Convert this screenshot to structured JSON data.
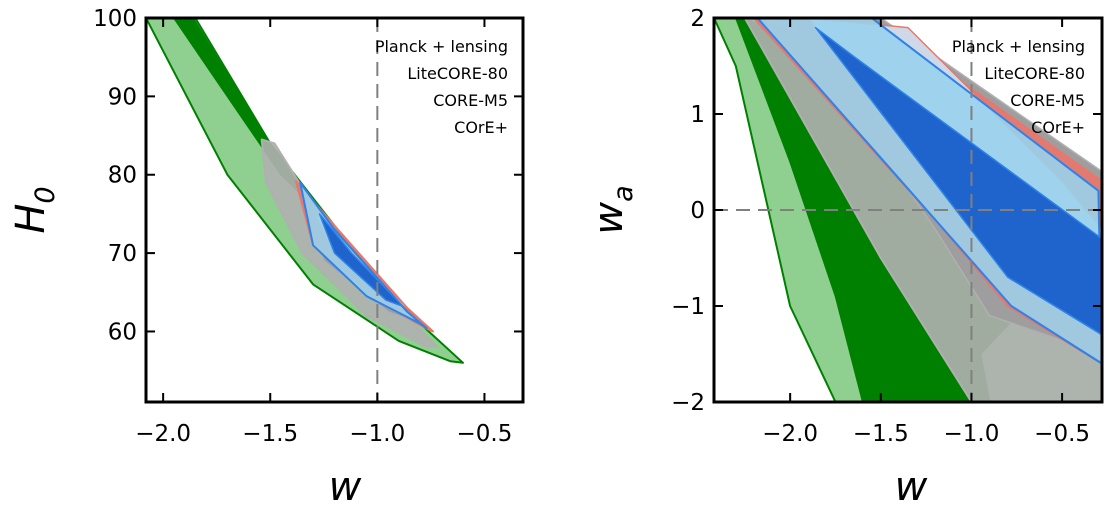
{
  "colors": {
    "planck": "#008000",
    "planck_light": "#8fcf8f",
    "litecore": "#b0b0b0",
    "core_m5": "#e8776d",
    "core_plus": "#2d83e8",
    "core_plus_light": "#99d2ec",
    "core_plus_dark": "#1f64cc",
    "reference_line": "#808080"
  },
  "chart_data": [
    {
      "type": "contour",
      "xlabel": "w",
      "ylabel": "H",
      "ylabel_subscript": "0",
      "xlim": [
        -2.08,
        -0.32
      ],
      "ylim": [
        51,
        100
      ],
      "xticks": [
        -2.0,
        -1.5,
        -1.0,
        -0.5
      ],
      "xtick_labels": [
        "−2.0",
        "−1.5",
        "−1.0",
        "−0.5"
      ],
      "yticks": [
        60,
        70,
        80,
        90,
        100
      ],
      "ytick_labels": [
        "60",
        "70",
        "80",
        "90",
        "100"
      ],
      "reference_lines": [
        {
          "axis": "x",
          "value": -1.0
        }
      ],
      "legend_position": "top-right",
      "legend": [
        {
          "label": "Planck + lensing",
          "color_key": "planck"
        },
        {
          "label": "LiteCORE-80",
          "color_key": "litecore"
        },
        {
          "label": "CORE-M5",
          "color_key": "core_m5"
        },
        {
          "label": "COrE+",
          "color_key": "core_plus"
        }
      ],
      "series": [
        {
          "name": "Planck + lensing",
          "outer": [
            [
              -2.0,
              100
            ],
            [
              -1.85,
              100
            ],
            [
              -1.5,
              84
            ],
            [
              -1.1,
              70
            ],
            [
              -0.8,
              61
            ],
            [
              -0.6,
              56
            ],
            [
              -0.66,
              56.2
            ],
            [
              -0.9,
              58.8
            ],
            [
              -1.3,
              66
            ],
            [
              -1.7,
              80
            ],
            [
              -2.08,
              100
            ]
          ],
          "inner": [
            [
              -1.95,
              100
            ],
            [
              -1.86,
              100
            ],
            [
              -1.55,
              86
            ],
            [
              -1.3,
              76
            ],
            [
              -1.45,
              80
            ],
            [
              -1.7,
              90
            ]
          ]
        },
        {
          "name": "LiteCORE-80",
          "outer": [
            [
              -1.54,
              84.5
            ],
            [
              -1.48,
              84
            ],
            [
              -1.25,
              74
            ],
            [
              -0.9,
              63
            ],
            [
              -0.72,
              58
            ],
            [
              -0.78,
              58.2
            ],
            [
              -1.05,
              62
            ],
            [
              -1.35,
              70
            ],
            [
              -1.52,
              79
            ]
          ],
          "inner": [
            [
              -1.38,
              79
            ],
            [
              -1.2,
              73
            ],
            [
              -0.85,
              61.5
            ],
            [
              -0.95,
              62.5
            ],
            [
              -1.25,
              69
            ]
          ]
        },
        {
          "name": "CORE-M5",
          "outer": [
            [
              -1.38,
              79.2
            ],
            [
              -1.2,
              73.5
            ],
            [
              -0.86,
              63
            ],
            [
              -0.74,
              60
            ],
            [
              -0.78,
              60.5
            ],
            [
              -1.0,
              64
            ],
            [
              -1.3,
              71
            ]
          ],
          "inner": [
            [
              -1.3,
              75.5
            ],
            [
              -1.15,
              71
            ],
            [
              -0.86,
              63
            ],
            [
              -0.92,
              63.5
            ],
            [
              -1.2,
              70
            ]
          ]
        },
        {
          "name": "COrE+",
          "outer": [
            [
              -1.36,
              79
            ],
            [
              -1.2,
              73
            ],
            [
              -0.86,
              62.5
            ],
            [
              -0.77,
              60.4
            ],
            [
              -0.8,
              61
            ],
            [
              -1.05,
              64.5
            ],
            [
              -1.3,
              71
            ]
          ],
          "inner": [
            [
              -1.27,
              75
            ],
            [
              -1.12,
              70
            ],
            [
              -0.88,
              63.2
            ],
            [
              -0.96,
              64
            ],
            [
              -1.2,
              70
            ]
          ]
        }
      ]
    },
    {
      "type": "contour",
      "xlabel": "w",
      "ylabel": "w",
      "ylabel_subscript": "a",
      "xlim": [
        -2.42,
        -0.28
      ],
      "ylim": [
        -2,
        2
      ],
      "xticks": [
        -2.0,
        -1.5,
        -1.0,
        -0.5
      ],
      "xtick_labels": [
        "−2.0",
        "−1.5",
        "−1.0",
        "−0.5"
      ],
      "yticks": [
        -2,
        -1,
        0,
        1,
        2
      ],
      "ytick_labels": [
        "−2",
        "−1",
        "0",
        "1",
        "2"
      ],
      "reference_lines": [
        {
          "axis": "x",
          "value": -1.0
        },
        {
          "axis": "y",
          "value": 0
        }
      ],
      "legend_position": "top-right",
      "legend": [
        {
          "label": "Planck + lensing",
          "color_key": "planck"
        },
        {
          "label": "LiteCORE-80",
          "color_key": "litecore"
        },
        {
          "label": "CORE-M5",
          "color_key": "core_m5"
        },
        {
          "label": "COrE+",
          "color_key": "core_plus"
        }
      ],
      "series": [
        {
          "name": "Planck + lensing",
          "outer": [
            [
              -2.42,
              2
            ],
            [
              -2.2,
              2
            ],
            [
              -1.5,
              1.5
            ],
            [
              -0.28,
              -0.3
            ],
            [
              -0.28,
              -2
            ],
            [
              -1.75,
              -2
            ],
            [
              -2.0,
              -1.0
            ],
            [
              -2.3,
              1.5
            ]
          ],
          "inner": [
            [
              -2.3,
              2
            ],
            [
              -2.25,
              2
            ],
            [
              -1.4,
              1.2
            ],
            [
              -0.9,
              0.4
            ],
            [
              -0.7,
              -1.0
            ],
            [
              -0.95,
              -1.5
            ],
            [
              -0.9,
              -2
            ],
            [
              -1.6,
              -2
            ],
            [
              -1.75,
              -0.9
            ],
            [
              -2.0,
              0.5
            ]
          ]
        },
        {
          "name": "LiteCORE-80",
          "outer": [
            [
              -2.25,
              2
            ],
            [
              -1.7,
              2
            ],
            [
              -0.28,
              0.2
            ],
            [
              -0.28,
              -2
            ],
            [
              -1.0,
              -2
            ],
            [
              -1.5,
              -0.5
            ]
          ],
          "inner": [
            [
              -2.0,
              2
            ],
            [
              -1.5,
              2
            ],
            [
              -0.28,
              0.4
            ],
            [
              -0.28,
              -1.5
            ],
            [
              -0.9,
              -1.1
            ],
            [
              -1.2,
              -0.2
            ]
          ]
        },
        {
          "name": "CORE-M5",
          "outer": [
            [
              -2.2,
              2
            ],
            [
              -1.55,
              2
            ],
            [
              -0.28,
              0.3
            ],
            [
              -0.28,
              -1.6
            ],
            [
              -0.8,
              -1.0
            ],
            [
              -1.2,
              -0.1
            ]
          ],
          "inner": [
            [
              -1.9,
              2
            ],
            [
              -1.35,
              1.9
            ],
            [
              -0.5,
              0.3
            ],
            [
              -0.28,
              -0.2
            ],
            [
              -0.28,
              -1.2
            ],
            [
              -0.8,
              -0.7
            ]
          ]
        },
        {
          "name": "COrE+",
          "outer": [
            [
              -2.18,
              2
            ],
            [
              -1.55,
              2
            ],
            [
              -0.3,
              0.2
            ],
            [
              -0.28,
              -1.6
            ],
            [
              -0.78,
              -1.0
            ],
            [
              -1.2,
              -0.1
            ]
          ],
          "inner": [
            [
              -1.86,
              1.9
            ],
            [
              -1.65,
              1.6
            ],
            [
              -0.28,
              -0.3
            ],
            [
              -0.28,
              -1.3
            ],
            [
              -0.8,
              -0.7
            ]
          ]
        }
      ]
    }
  ]
}
